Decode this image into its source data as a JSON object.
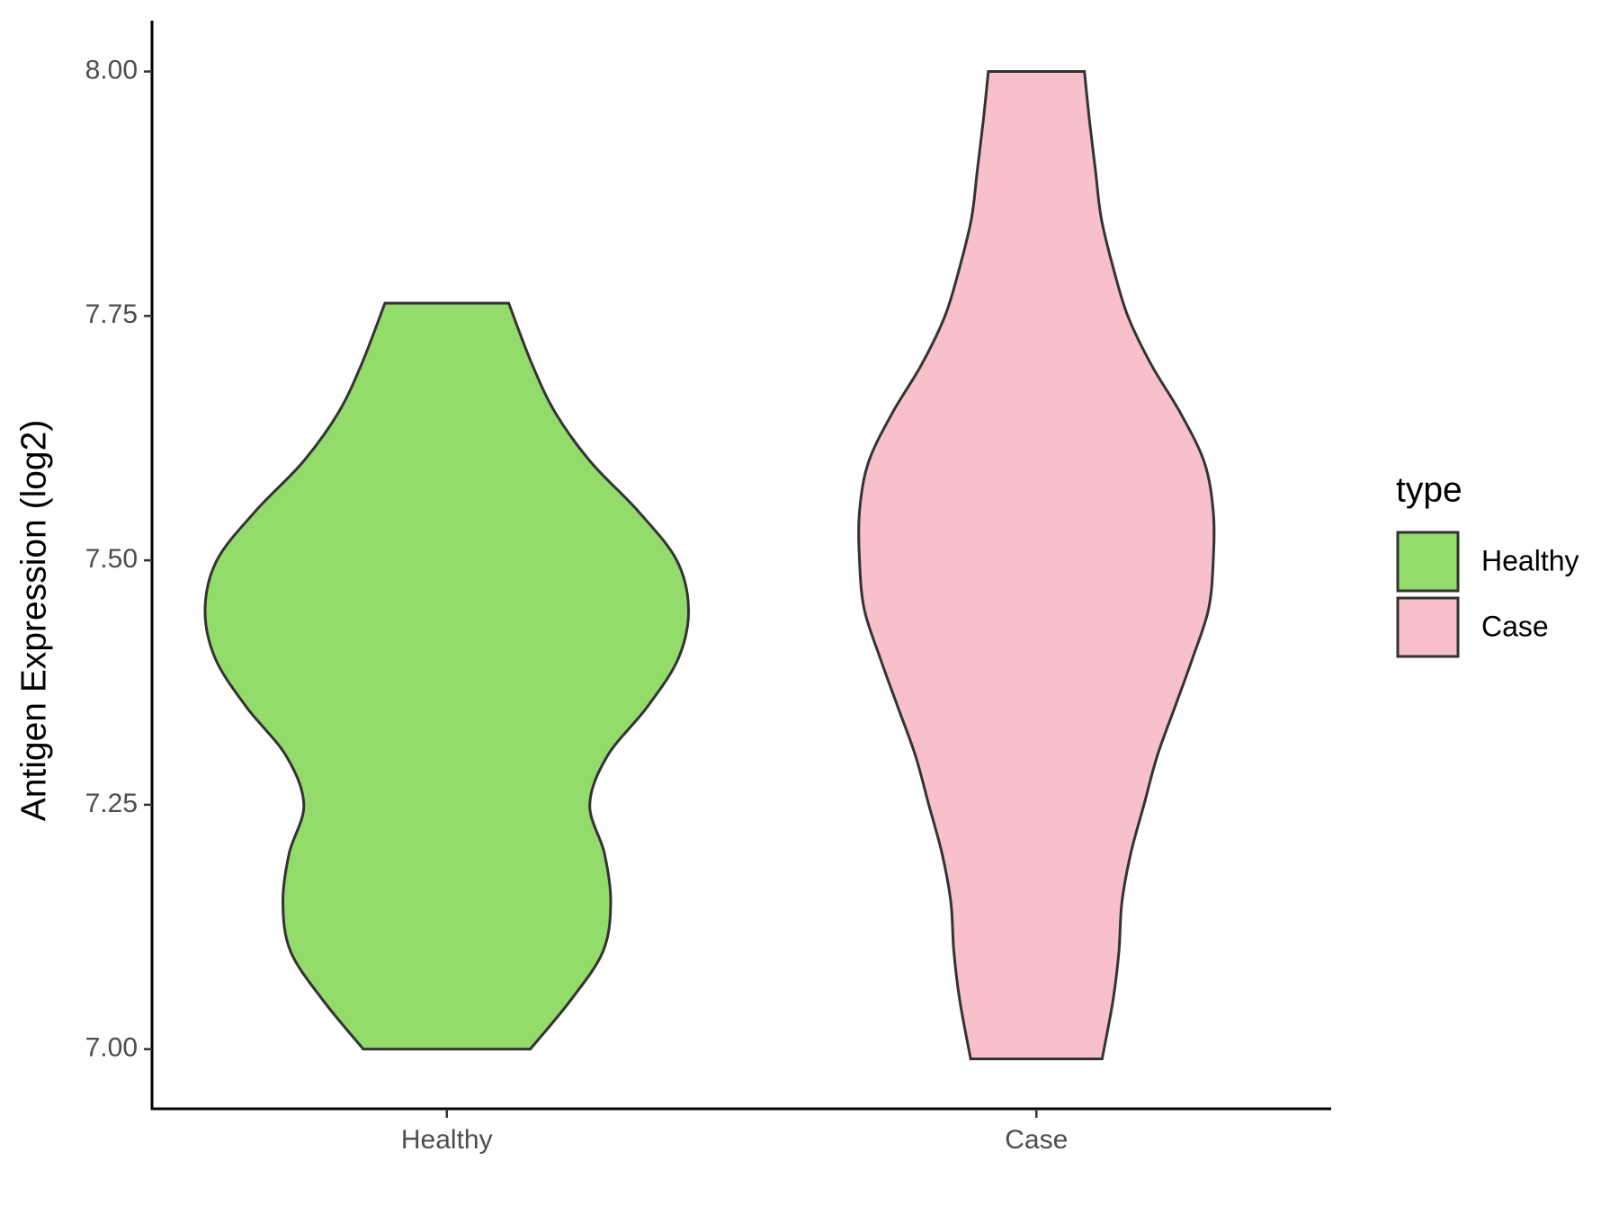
{
  "chart_data": {
    "type": "violin",
    "y_label": "Antigen Expression (log2)",
    "categories": [
      "Healthy",
      "Case"
    ],
    "legend_title": "type",
    "series": [
      {
        "name": "Healthy",
        "color": "#93db6b",
        "y": [
          7.0,
          7.05,
          7.1,
          7.15,
          7.2,
          7.25,
          7.3,
          7.35,
          7.4,
          7.45,
          7.5,
          7.55,
          7.6,
          7.65,
          7.7,
          7.763
        ],
        "widths": [
          0.283,
          0.42,
          0.53,
          0.556,
          0.535,
          0.485,
          0.545,
          0.68,
          0.786,
          0.82,
          0.78,
          0.65,
          0.49,
          0.37,
          0.29,
          0.21
        ]
      },
      {
        "name": "Case",
        "color": "#f7c0cb",
        "y": [
          6.99,
          7.05,
          7.1,
          7.15,
          7.2,
          7.25,
          7.3,
          7.35,
          7.4,
          7.45,
          7.5,
          7.55,
          7.6,
          7.65,
          7.7,
          7.75,
          7.8,
          7.85,
          7.9,
          7.95,
          8.0
        ],
        "widths": [
          0.223,
          0.26,
          0.28,
          0.29,
          0.32,
          0.365,
          0.41,
          0.47,
          0.53,
          0.584,
          0.6,
          0.6,
          0.57,
          0.49,
          0.39,
          0.31,
          0.26,
          0.22,
          0.2,
          0.18,
          0.163
        ]
      }
    ],
    "ylim": [
      6.939,
      8.052
    ],
    "yticks": [
      {
        "value": 7,
        "label": "7.00"
      },
      {
        "value": 7.25,
        "label": "7.25"
      },
      {
        "value": 7.5,
        "label": "7.50"
      },
      {
        "value": 7.75,
        "label": "7.75"
      },
      {
        "value": 8,
        "label": "8.00"
      }
    ]
  }
}
